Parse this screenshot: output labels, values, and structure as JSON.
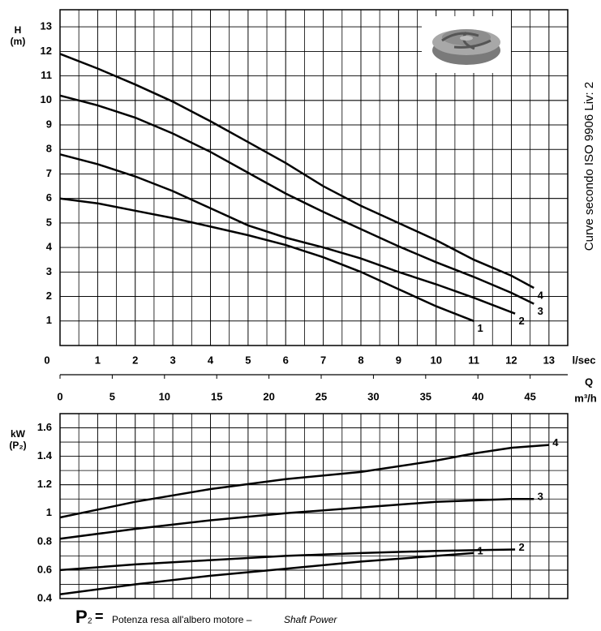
{
  "chart_data": [
    {
      "type": "line",
      "y_label": [
        "H",
        "(m)"
      ],
      "x_unit": "l/sec",
      "x2_label": [
        "Q",
        "m³/h"
      ],
      "side_note": "Curve secondo ISO 9906 Liv: 2",
      "xlim": [
        0,
        13.5
      ],
      "xticks": [
        0,
        1,
        2,
        3,
        4,
        5,
        6,
        7,
        8,
        9,
        10,
        11,
        12,
        13
      ],
      "x_minor": 2,
      "x2lim": [
        0,
        48.6
      ],
      "x2ticks": [
        0,
        5,
        10,
        15,
        20,
        25,
        30,
        35,
        40,
        45
      ],
      "ylim": [
        0,
        13.7
      ],
      "yticks": [
        1,
        2,
        3,
        4,
        5,
        6,
        7,
        8,
        9,
        10,
        11,
        12,
        13
      ],
      "y_minor": 1,
      "grid": true,
      "series": [
        {
          "name": "1",
          "color": "#000000",
          "x": [
            0,
            1,
            2,
            3,
            4,
            5,
            6,
            7,
            8,
            9,
            10,
            11
          ],
          "values": [
            6,
            5.8,
            5.5,
            5.2,
            4.85,
            4.5,
            4.1,
            3.6,
            3.0,
            2.3,
            1.6,
            1.0
          ]
        },
        {
          "name": "2",
          "color": "#000000",
          "x": [
            0,
            1,
            2,
            3,
            4,
            5,
            6,
            7,
            8,
            9,
            10,
            11,
            12.1
          ],
          "values": [
            7.8,
            7.4,
            6.9,
            6.3,
            5.6,
            4.9,
            4.4,
            4.0,
            3.55,
            3.0,
            2.5,
            1.95,
            1.3
          ]
        },
        {
          "name": "3",
          "color": "#000000",
          "x": [
            0,
            1,
            2,
            3,
            4,
            5,
            6,
            7,
            8,
            9,
            10,
            11,
            12,
            12.6
          ],
          "values": [
            10.2,
            9.8,
            9.3,
            8.65,
            7.9,
            7.05,
            6.2,
            5.45,
            4.75,
            4.05,
            3.4,
            2.8,
            2.15,
            1.7
          ]
        },
        {
          "name": "4",
          "color": "#000000",
          "x": [
            0,
            1,
            2,
            3,
            4,
            5,
            6,
            7,
            8,
            9,
            10,
            11,
            12,
            12.6
          ],
          "values": [
            11.9,
            11.3,
            10.65,
            9.95,
            9.15,
            8.3,
            7.45,
            6.5,
            5.7,
            5.0,
            4.3,
            3.5,
            2.85,
            2.35
          ]
        }
      ]
    },
    {
      "type": "line",
      "y_label": [
        "kW",
        "(P₂)"
      ],
      "sharex": 0,
      "xlim": [
        0,
        13.5
      ],
      "ylim": [
        0.4,
        1.7
      ],
      "yticks": [
        0.4,
        0.6,
        0.8,
        1,
        1.2,
        1.4,
        1.6
      ],
      "y_minor": 2,
      "grid": true,
      "series": [
        {
          "name": "1",
          "color": "#000000",
          "x": [
            0,
            2,
            4,
            6,
            8,
            10,
            11
          ],
          "values": [
            0.43,
            0.5,
            0.56,
            0.61,
            0.66,
            0.7,
            0.72
          ]
        },
        {
          "name": "2",
          "color": "#000000",
          "x": [
            0,
            2,
            4,
            6,
            8,
            10,
            11,
            12.1
          ],
          "values": [
            0.6,
            0.64,
            0.67,
            0.7,
            0.72,
            0.735,
            0.74,
            0.745
          ]
        },
        {
          "name": "3",
          "color": "#000000",
          "x": [
            0,
            2,
            4,
            6,
            8,
            10,
            12,
            12.6
          ],
          "values": [
            0.82,
            0.89,
            0.95,
            1.0,
            1.04,
            1.08,
            1.1,
            1.1
          ]
        },
        {
          "name": "4",
          "color": "#000000",
          "x": [
            0,
            2,
            4,
            6,
            8,
            10,
            11,
            12,
            13
          ],
          "values": [
            0.97,
            1.08,
            1.17,
            1.24,
            1.29,
            1.37,
            1.42,
            1.46,
            1.48
          ]
        }
      ]
    }
  ],
  "footer": {
    "symbol": "P",
    "subscript": "2",
    "equals": "=",
    "text": "Potenza resa all'albero motore –",
    "text_en": "Shaft Power"
  }
}
